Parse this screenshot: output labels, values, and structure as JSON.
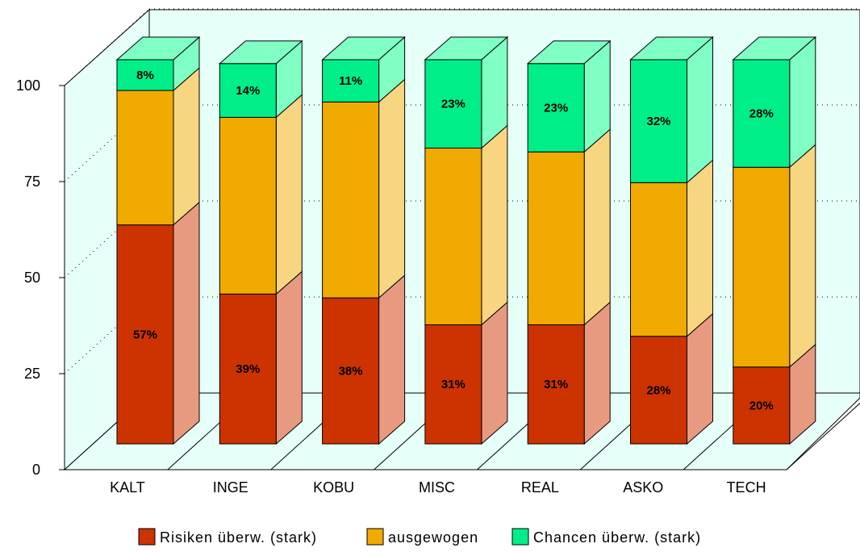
{
  "chart_data": {
    "type": "bar",
    "stacked": true,
    "three_d": true,
    "categories": [
      "KALT",
      "INGE",
      "KOBU",
      "MISC",
      "REAL",
      "ASKO",
      "TECH"
    ],
    "series": [
      {
        "name": "Risiken überw. (stark)",
        "values": [
          57,
          39,
          38,
          31,
          31,
          28,
          20
        ],
        "color": "#cc3300",
        "side_color": "#e89a80"
      },
      {
        "name": "ausgewogen",
        "values": [
          35,
          46,
          51,
          46,
          45,
          40,
          52
        ],
        "color": "#f0aa00",
        "side_color": "#f8d580"
      },
      {
        "name": "Chancen überw. (stark)",
        "values": [
          8,
          14,
          11,
          23,
          23,
          32,
          28
        ],
        "color": "#00ee88",
        "side_color": "#80ffc4"
      }
    ],
    "data_labels": [
      [
        "57%",
        "39%",
        "38%",
        "31%",
        "31%",
        "28%",
        "20%"
      ],
      [
        "",
        "",
        "",
        "",
        "",
        "",
        ""
      ],
      [
        "8%",
        "14%",
        "11%",
        "23%",
        "23%",
        "32%",
        "28%"
      ]
    ],
    "yticks": [
      "0",
      "25",
      "50",
      "75",
      "100"
    ],
    "ylim": [
      0,
      100
    ],
    "grid": true,
    "legend_position": "bottom",
    "wall_color": "#e6fff8"
  }
}
